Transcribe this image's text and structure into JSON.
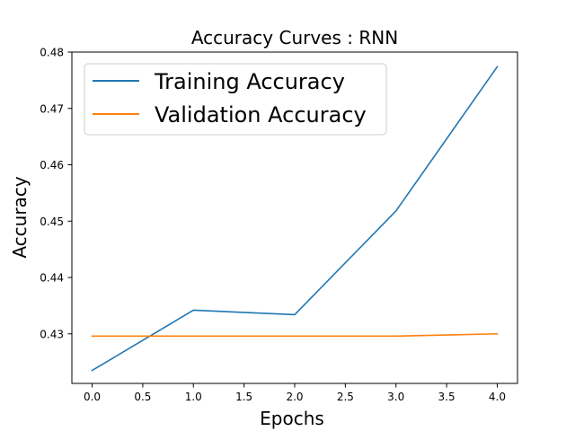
{
  "chart_data": {
    "type": "line",
    "title": "Accuracy Curves : RNN",
    "xlabel": "Epochs",
    "ylabel": "Accuracy",
    "x": [
      0,
      1,
      2,
      3,
      4
    ],
    "xlim": [
      -0.2,
      4.2
    ],
    "ylim": [
      0.4212,
      0.48
    ],
    "xticks": [
      0.0,
      0.5,
      1.0,
      1.5,
      2.0,
      2.5,
      3.0,
      3.5,
      4.0
    ],
    "xtick_labels": [
      "0.0",
      "0.5",
      "1.0",
      "1.5",
      "2.0",
      "2.5",
      "3.0",
      "3.5",
      "4.0"
    ],
    "yticks": [
      0.43,
      0.44,
      0.45,
      0.46,
      0.47,
      0.48
    ],
    "ytick_labels": [
      "0.43",
      "0.44",
      "0.45",
      "0.46",
      "0.47",
      "0.48"
    ],
    "grid": false,
    "legend_position": "top-left",
    "series": [
      {
        "name": "Training Accuracy",
        "color": "#1f77b4",
        "values": [
          0.4235,
          0.4342,
          0.4334,
          0.4518,
          0.4774
        ]
      },
      {
        "name": "Validation Accuracy",
        "color": "#ff7f0e",
        "values": [
          0.4296,
          0.4296,
          0.4296,
          0.4296,
          0.43
        ]
      }
    ]
  }
}
